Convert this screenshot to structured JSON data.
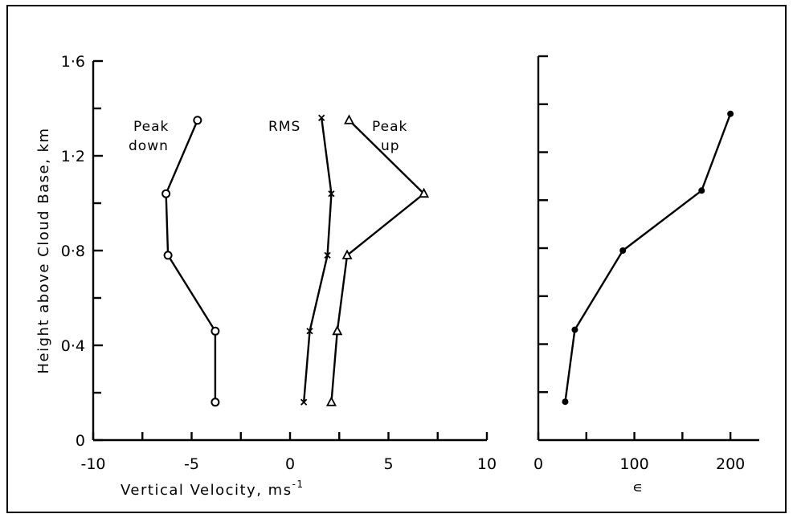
{
  "chart_data": [
    {
      "type": "line",
      "ylabel": "Height above Cloud Base, km",
      "xlabel_main": "Vertical  Velocity, ms",
      "xlabel_sup": "-1",
      "xlim": [
        -10,
        10
      ],
      "ylim": [
        0,
        1.6
      ],
      "xticks": [
        -10,
        -5,
        0,
        5,
        10
      ],
      "xtick_labels": [
        "-10",
        "-5",
        "0",
        "5",
        "10"
      ],
      "yticks": [
        0,
        0.4,
        0.8,
        1.2,
        1.6
      ],
      "ytick_labels": [
        "0",
        "0·4",
        "0·8",
        "1·2",
        "1·6"
      ],
      "y": [
        0.16,
        0.46,
        0.78,
        1.04,
        1.35
      ],
      "series": [
        {
          "name": "Peak down",
          "marker": "circle",
          "x": [
            -3.8,
            -3.8,
            -6.2,
            -6.3,
            -4.7
          ],
          "y": [
            0.16,
            0.46,
            0.78,
            1.04,
            1.35
          ]
        },
        {
          "name": "RMS",
          "marker": "x",
          "x": [
            0.7,
            1.0,
            1.9,
            2.1,
            1.6
          ],
          "y": [
            0.16,
            0.46,
            0.78,
            1.04,
            1.36
          ]
        },
        {
          "name": "Peak up",
          "marker": "triangle",
          "x": [
            2.1,
            2.4,
            2.9,
            6.8,
            3.0
          ],
          "y": [
            0.16,
            0.46,
            0.78,
            1.04,
            1.35
          ]
        }
      ],
      "annotations": [
        {
          "text": "Peak",
          "series": "Peak down"
        },
        {
          "text": "down",
          "series": "Peak down"
        },
        {
          "text": "RMS",
          "series": "RMS"
        },
        {
          "text": "Peak",
          "series": "Peak up"
        },
        {
          "text": "up",
          "series": "Peak up"
        }
      ]
    },
    {
      "type": "line",
      "xlabel": "∊",
      "xlim": [
        0,
        230
      ],
      "ylim": [
        0,
        1.6
      ],
      "xticks": [
        0,
        100,
        200
      ],
      "xtick_labels": [
        "0",
        "100",
        "200"
      ],
      "yticks": [
        0.2,
        0.4,
        0.6,
        0.8,
        1.0,
        1.2,
        1.4,
        1.6
      ],
      "series": [
        {
          "marker": "dot",
          "x": [
            28,
            38,
            88,
            170,
            200
          ],
          "y": [
            0.16,
            0.46,
            0.79,
            1.04,
            1.36
          ]
        }
      ]
    }
  ]
}
